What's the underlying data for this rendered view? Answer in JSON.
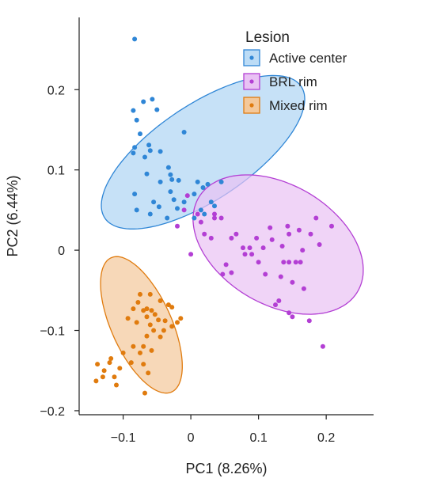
{
  "chart_data": {
    "type": "scatter",
    "xlabel": "PC1 (8.26%)",
    "ylabel": "PC2 (6.44%)",
    "xlim": [
      -0.165,
      0.27
    ],
    "ylim": [
      -0.205,
      0.29
    ],
    "xticks": [
      -0.1,
      0,
      0.1,
      0.2
    ],
    "xtick_labels": [
      "−0.1",
      "0",
      "0.1",
      "0.2"
    ],
    "yticks": [
      -0.2,
      -0.1,
      0,
      0.1,
      0.2
    ],
    "ytick_labels": [
      "−0.2",
      "−0.1",
      "0",
      "0.1",
      "0.2"
    ],
    "legend": {
      "title": "Lesion",
      "position": "top-right"
    },
    "series": [
      {
        "name": "Active center",
        "color": "#2f86d6",
        "fill": "#bcdcf6",
        "ellipse": {
          "cx": 0.018,
          "cy": 0.122,
          "rx": 0.062,
          "ry": 0.167,
          "angle_deg": 118
        },
        "points": [
          [
            -0.083,
            0.263
          ],
          [
            -0.07,
            0.185
          ],
          [
            -0.057,
            0.188
          ],
          [
            -0.085,
            0.174
          ],
          [
            -0.08,
            0.162
          ],
          [
            -0.05,
            0.175
          ],
          [
            -0.01,
            0.147
          ],
          [
            -0.075,
            0.145
          ],
          [
            -0.062,
            0.131
          ],
          [
            -0.06,
            0.124
          ],
          [
            -0.083,
            0.128
          ],
          [
            -0.068,
            0.116
          ],
          [
            -0.085,
            0.121
          ],
          [
            -0.045,
            0.123
          ],
          [
            -0.033,
            0.103
          ],
          [
            -0.03,
            0.094
          ],
          [
            -0.028,
            0.088
          ],
          [
            -0.065,
            0.095
          ],
          [
            -0.045,
            0.085
          ],
          [
            -0.018,
            0.087
          ],
          [
            -0.03,
            0.073
          ],
          [
            -0.083,
            0.07
          ],
          [
            -0.055,
            0.06
          ],
          [
            -0.025,
            0.063
          ],
          [
            -0.01,
            0.06
          ],
          [
            0.005,
            0.07
          ],
          [
            0.01,
            0.085
          ],
          [
            0.018,
            0.078
          ],
          [
            0.025,
            0.082
          ],
          [
            0.03,
            0.06
          ],
          [
            -0.02,
            0.052
          ],
          [
            0.015,
            0.05
          ],
          [
            0.02,
            0.045
          ],
          [
            0.035,
            0.055
          ],
          [
            -0.06,
            0.045
          ],
          [
            -0.08,
            0.05
          ],
          [
            -0.035,
            0.04
          ],
          [
            0.005,
            0.04
          ],
          [
            0.045,
            0.085
          ],
          [
            -0.047,
            0.054
          ]
        ]
      },
      {
        "name": "BRL rim",
        "color": "#b33fd4",
        "fill": "#e9c2f4",
        "ellipse": {
          "cx": 0.129,
          "cy": 0.007,
          "rx": 0.132,
          "ry": 0.077,
          "angle_deg": -22
        },
        "points": [
          [
            0.185,
            0.04
          ],
          [
            0.208,
            0.03
          ],
          [
            0.143,
            0.03
          ],
          [
            0.117,
            0.028
          ],
          [
            0.16,
            0.025
          ],
          [
            0.145,
            0.02
          ],
          [
            0.067,
            0.02
          ],
          [
            0.177,
            0.02
          ],
          [
            0.097,
            0.015
          ],
          [
            0.12,
            0.013
          ],
          [
            0.19,
            0.007
          ],
          [
            0.077,
            0.003
          ],
          [
            0.087,
            0.003
          ],
          [
            0.107,
            0.003
          ],
          [
            0.135,
            0.005
          ],
          [
            0.165,
            0.0
          ],
          [
            0.08,
            -0.005
          ],
          [
            0.09,
            -0.005
          ],
          [
            0.1,
            -0.015
          ],
          [
            0.137,
            -0.015
          ],
          [
            0.145,
            -0.015
          ],
          [
            0.155,
            -0.015
          ],
          [
            0.162,
            -0.015
          ],
          [
            0.052,
            -0.018
          ],
          [
            0.06,
            -0.028
          ],
          [
            0.047,
            -0.03
          ],
          [
            0.11,
            -0.03
          ],
          [
            0.133,
            -0.033
          ],
          [
            0.15,
            -0.04
          ],
          [
            0.167,
            -0.048
          ],
          [
            0.13,
            -0.063
          ],
          [
            0.125,
            -0.068
          ],
          [
            0.145,
            -0.078
          ],
          [
            0.15,
            -0.083
          ],
          [
            0.175,
            -0.088
          ],
          [
            0.195,
            -0.12
          ],
          [
            0.02,
            0.02
          ],
          [
            0.03,
            0.015
          ],
          [
            0.0,
            -0.005
          ],
          [
            0.015,
            0.035
          ],
          [
            -0.02,
            0.03
          ],
          [
            0.035,
            0.045
          ],
          [
            0.01,
            0.045
          ],
          [
            -0.01,
            0.05
          ],
          [
            0.045,
            0.04
          ],
          [
            0.06,
            0.015
          ],
          [
            -0.005,
            0.068
          ],
          [
            0.035,
            0.04
          ]
        ]
      },
      {
        "name": "Mixed rim",
        "color": "#e07b0e",
        "fill": "#f4c89a",
        "ellipse": {
          "cx": -0.073,
          "cy": -0.093,
          "rx": 0.095,
          "ry": 0.043,
          "angle_deg": -60
        },
        "points": [
          [
            -0.075,
            -0.055
          ],
          [
            -0.06,
            -0.055
          ],
          [
            -0.078,
            -0.065
          ],
          [
            -0.045,
            -0.063
          ],
          [
            -0.033,
            -0.068
          ],
          [
            -0.028,
            -0.071
          ],
          [
            -0.085,
            -0.073
          ],
          [
            -0.065,
            -0.073
          ],
          [
            -0.07,
            -0.075
          ],
          [
            -0.058,
            -0.075
          ],
          [
            -0.053,
            -0.08
          ],
          [
            -0.093,
            -0.085
          ],
          [
            -0.048,
            -0.087
          ],
          [
            -0.065,
            -0.083
          ],
          [
            -0.038,
            -0.088
          ],
          [
            -0.08,
            -0.09
          ],
          [
            -0.06,
            -0.093
          ],
          [
            -0.015,
            -0.085
          ],
          [
            -0.055,
            -0.1
          ],
          [
            -0.045,
            -0.108
          ],
          [
            -0.065,
            -0.107
          ],
          [
            -0.085,
            -0.12
          ],
          [
            -0.07,
            -0.12
          ],
          [
            -0.058,
            -0.125
          ],
          [
            -0.075,
            -0.128
          ],
          [
            -0.1,
            -0.128
          ],
          [
            -0.118,
            -0.135
          ],
          [
            -0.088,
            -0.14
          ],
          [
            -0.12,
            -0.14
          ],
          [
            -0.07,
            -0.142
          ],
          [
            -0.105,
            -0.147
          ],
          [
            -0.063,
            -0.153
          ],
          [
            -0.138,
            -0.142
          ],
          [
            -0.128,
            -0.15
          ],
          [
            -0.113,
            -0.158
          ],
          [
            -0.13,
            -0.158
          ],
          [
            -0.14,
            -0.163
          ],
          [
            -0.11,
            -0.168
          ],
          [
            -0.068,
            -0.178
          ],
          [
            -0.04,
            -0.1
          ],
          [
            -0.028,
            -0.095
          ],
          [
            -0.02,
            -0.09
          ]
        ]
      }
    ]
  }
}
